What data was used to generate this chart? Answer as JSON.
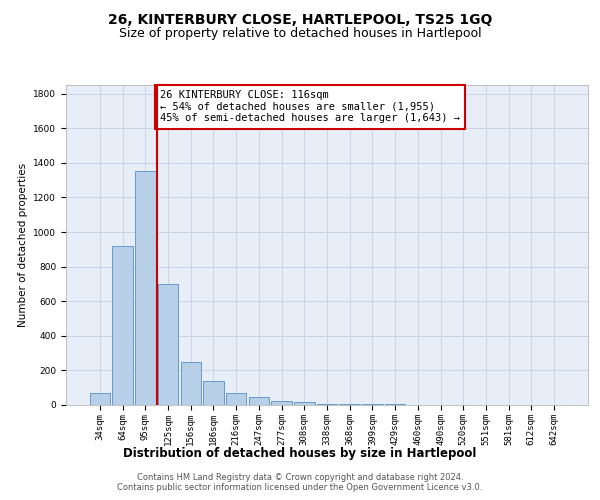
{
  "title": "26, KINTERBURY CLOSE, HARTLEPOOL, TS25 1GQ",
  "subtitle": "Size of property relative to detached houses in Hartlepool",
  "xlabel": "Distribution of detached houses by size in Hartlepool",
  "ylabel": "Number of detached properties",
  "categories": [
    "34sqm",
    "64sqm",
    "95sqm",
    "125sqm",
    "156sqm",
    "186sqm",
    "216sqm",
    "247sqm",
    "277sqm",
    "308sqm",
    "338sqm",
    "368sqm",
    "399sqm",
    "429sqm",
    "460sqm",
    "490sqm",
    "520sqm",
    "551sqm",
    "581sqm",
    "612sqm",
    "642sqm"
  ],
  "values": [
    70,
    920,
    1350,
    700,
    250,
    140,
    70,
    45,
    25,
    15,
    8,
    5,
    3,
    3,
    2,
    1,
    1,
    1,
    1,
    1,
    1
  ],
  "bar_color": "#b8cfe8",
  "bar_edge_color": "#6699cc",
  "vline_color": "#cc0000",
  "annotation_text": "26 KINTERBURY CLOSE: 116sqm\n← 54% of detached houses are smaller (1,955)\n45% of semi-detached houses are larger (1,643) →",
  "annotation_box_color": "#ffffff",
  "annotation_box_edge_color": "#cc0000",
  "ylim": [
    0,
    1850
  ],
  "yticks": [
    0,
    200,
    400,
    600,
    800,
    1000,
    1200,
    1400,
    1600,
    1800
  ],
  "grid_color": "#c8d4e8",
  "bg_color": "#e8eef8",
  "footer_text": "Contains HM Land Registry data © Crown copyright and database right 2024.\nContains public sector information licensed under the Open Government Licence v3.0.",
  "title_fontsize": 10,
  "subtitle_fontsize": 9,
  "xlabel_fontsize": 8.5,
  "ylabel_fontsize": 7.5,
  "tick_fontsize": 6.5,
  "annotation_fontsize": 7.5,
  "footer_fontsize": 6
}
